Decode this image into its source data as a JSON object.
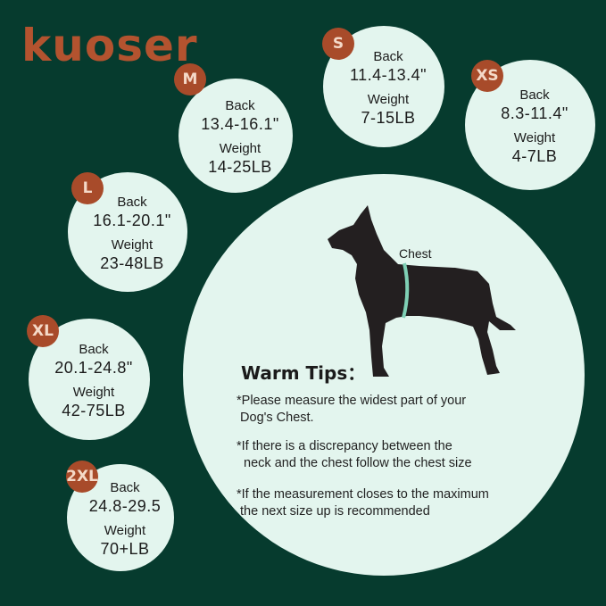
{
  "brand": "kuoser",
  "colors": {
    "background": "#063b2e",
    "circle": "#e3f5ee",
    "badge": "#a84b2a",
    "logo": "#b3532f"
  },
  "sizes": [
    {
      "size": "M",
      "back_label": "Back",
      "back": "13.4-16.1\"",
      "weight_label": "Weight",
      "weight": "14-25LB"
    },
    {
      "size": "S",
      "back_label": "Back",
      "back": "11.4-13.4\"",
      "weight_label": "Weight",
      "weight": "7-15LB"
    },
    {
      "size": "XS",
      "back_label": "Back",
      "back": "8.3-11.4\"",
      "weight_label": "Weight",
      "weight": "4-7LB"
    },
    {
      "size": "L",
      "back_label": "Back",
      "back": "16.1-20.1\"",
      "weight_label": "Weight",
      "weight": "23-48LB"
    },
    {
      "size": "XL",
      "back_label": "Back",
      "back": "20.1-24.8\"",
      "weight_label": "Weight",
      "weight": "42-75LB"
    },
    {
      "size": "2XL",
      "back_label": "Back",
      "back": "24.8-29.5",
      "weight_label": "Weight",
      "weight": "70+LB"
    }
  ],
  "diagram": {
    "chest_label": "Chest",
    "icon": "dog-silhouette-icon"
  },
  "tips": {
    "title": "Warm Tips：",
    "items": [
      "*Please measure the widest part of your\n Dog's Chest.",
      "*If there is a discrepancy between the\n  neck and the chest follow the chest size",
      "*If the measurement closes to the maximum\n the next size up is recommended"
    ]
  }
}
